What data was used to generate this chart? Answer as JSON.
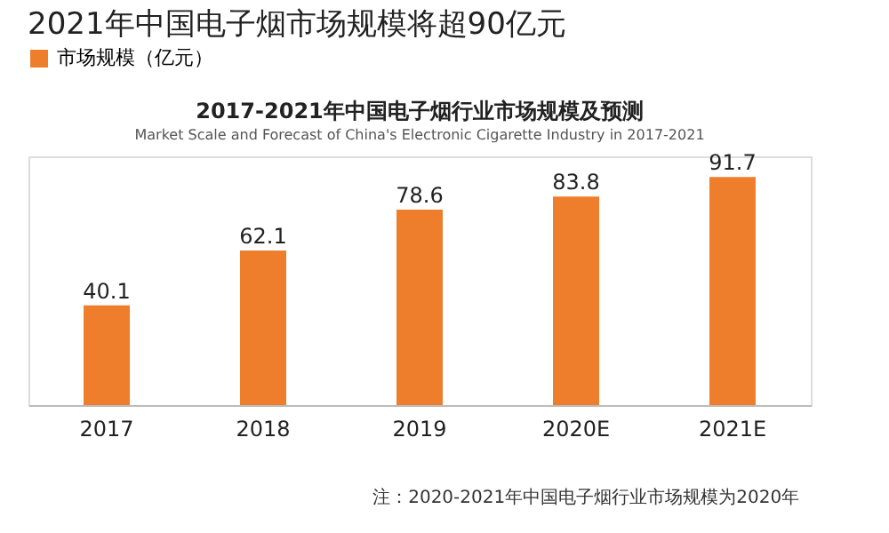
{
  "chart_data": {
    "type": "bar",
    "title": "2021年中国电子烟市场规模将超90亿元",
    "subtitle": "2017-2021年中国电子烟行业市场规模及预测",
    "annotations": [
      "Market Scale and Forecast of China's Electronic Cigarette Industry in 2017-2021",
      "注：2020-2021年中国电子烟行业市场规模为2020年"
    ],
    "categories": [
      "2017",
      "2018",
      "2019",
      "2020E",
      "2021E"
    ],
    "series": [
      {
        "name": "市场规模（亿元）",
        "color": "#ef7e2c",
        "values": [
          40.1,
          62.1,
          78.6,
          83.8,
          91.7
        ]
      }
    ],
    "data_labels": true,
    "legend": "top",
    "grid": false
  }
}
